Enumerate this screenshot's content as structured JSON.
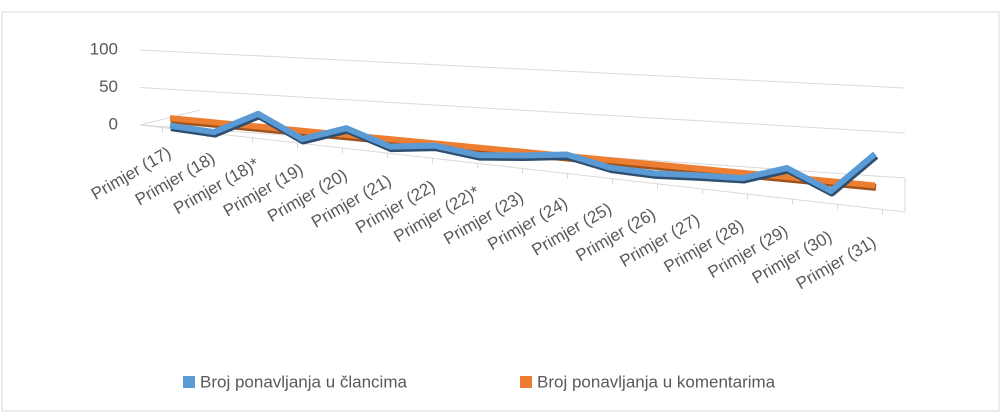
{
  "chart_data": {
    "type": "line",
    "categories": [
      "Primjer (17)",
      "Primjer (18)",
      "Primjer (18)*",
      "Primjer (19)",
      "Primjer (20)",
      "Primjer (21)",
      "Primjer (22)",
      "Primjer (22)*",
      "Primjer (23)",
      "Primjer (24)",
      "Primjer (25)",
      "Primjer (26)",
      "Primjer (27)",
      "Primjer (28)",
      "Primjer (29)",
      "Primjer (30)",
      "Primjer (31)"
    ],
    "series": [
      {
        "name": "Broj ponavljanja u člancima",
        "color": "#5b9bd5",
        "values": [
          3,
          0,
          30,
          2,
          22,
          3,
          10,
          3,
          8,
          15,
          3,
          1,
          4,
          6,
          25,
          0,
          55
        ]
      },
      {
        "name": "Broj ponavljanja u komentarima",
        "color": "#ed7d31",
        "values": [
          13,
          13,
          13,
          13,
          13,
          13,
          13,
          13,
          13,
          13,
          13,
          13,
          13,
          13,
          13,
          13,
          13
        ]
      }
    ],
    "ylim": [
      0,
      100
    ],
    "yticks": [
      0,
      50,
      100
    ],
    "grid": true,
    "legend": "bottom"
  }
}
